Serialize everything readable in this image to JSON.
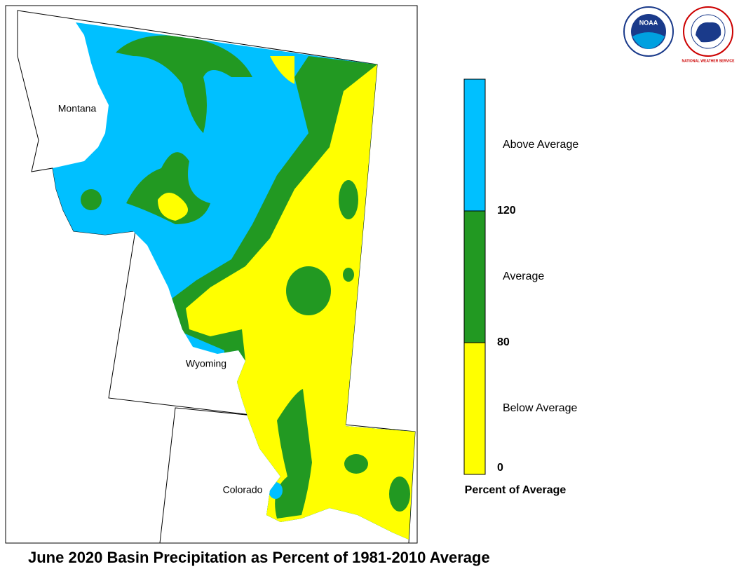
{
  "title": "June 2020 Basin Precipitation as Percent of 1981-2010 Average",
  "states": [
    "Montana",
    "Wyoming",
    "Colorado"
  ],
  "logos": [
    "NOAA",
    "NATIONAL WEATHER SERVICE"
  ],
  "legend": {
    "title": "Percent of Average",
    "bins": [
      {
        "label": "Above Average",
        "color": "#00c0ff"
      },
      {
        "label": "Average",
        "color": "#229922"
      },
      {
        "label": "Below Average",
        "color": "#ffff00"
      }
    ],
    "breaks": [
      "120",
      "80",
      "0"
    ]
  }
}
